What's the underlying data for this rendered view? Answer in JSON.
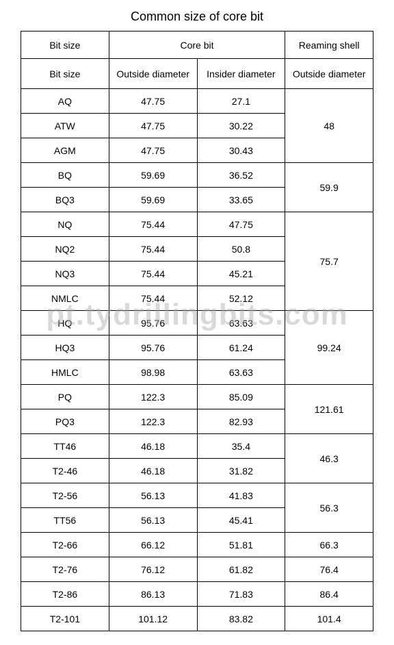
{
  "page": {
    "title": "Common size of core bit",
    "watermark": "pt.tydrillingbits.com",
    "background_color": "#ffffff",
    "border_color": "#000000",
    "text_color": "#000000",
    "watermark_color": "rgba(170,170,170,0.45)",
    "font_size_title": 18,
    "font_size_cell": 14
  },
  "headers": {
    "top_bitsize": "Bit size",
    "top_corebit": "Core bit",
    "top_reaming": "Reaming shell",
    "sub_bitsize": "Bit size",
    "sub_od": "Outside diameter",
    "sub_id": "Insider diameter",
    "sub_reaming_od": "Outside diameter"
  },
  "groups": [
    {
      "reaming_od": "48",
      "rows": [
        {
          "size": "AQ",
          "od": "47.75",
          "id": "27.1"
        },
        {
          "size": "ATW",
          "od": "47.75",
          "id": "30.22"
        },
        {
          "size": "AGM",
          "od": "47.75",
          "id": "30.43"
        }
      ]
    },
    {
      "reaming_od": "59.9",
      "rows": [
        {
          "size": "BQ",
          "od": "59.69",
          "id": "36.52"
        },
        {
          "size": "BQ3",
          "od": "59.69",
          "id": "33.65"
        }
      ]
    },
    {
      "reaming_od": "75.7",
      "rows": [
        {
          "size": "NQ",
          "od": "75.44",
          "id": "47.75"
        },
        {
          "size": "NQ2",
          "od": "75.44",
          "id": "50.8"
        },
        {
          "size": "NQ3",
          "od": "75.44",
          "id": "45.21"
        },
        {
          "size": "NMLC",
          "od": "75.44",
          "id": "52.12"
        }
      ]
    },
    {
      "reaming_od": "99.24",
      "rows": [
        {
          "size": "HQ",
          "od": "95.76",
          "id": "63.63"
        },
        {
          "size": "HQ3",
          "od": "95.76",
          "id": "61.24"
        },
        {
          "size": "HMLC",
          "od": "98.98",
          "id": "63.63"
        }
      ]
    },
    {
      "reaming_od": "121.61",
      "rows": [
        {
          "size": "PQ",
          "od": "122.3",
          "id": "85.09"
        },
        {
          "size": "PQ3",
          "od": "122.3",
          "id": "82.93"
        }
      ]
    },
    {
      "reaming_od": "46.3",
      "rows": [
        {
          "size": "TT46",
          "od": "46.18",
          "id": "35.4"
        },
        {
          "size": "T2-46",
          "od": "46.18",
          "id": "31.82"
        }
      ]
    },
    {
      "reaming_od": "56.3",
      "rows": [
        {
          "size": "T2-56",
          "od": "56.13",
          "id": "41.83"
        },
        {
          "size": "TT56",
          "od": "56.13",
          "id": "45.41"
        }
      ]
    },
    {
      "reaming_od": "66.3",
      "rows": [
        {
          "size": "T2-66",
          "od": "66.12",
          "id": "51.81"
        }
      ]
    },
    {
      "reaming_od": "76.4",
      "rows": [
        {
          "size": "T2-76",
          "od": "76.12",
          "id": "61.82"
        }
      ]
    },
    {
      "reaming_od": "86.4",
      "rows": [
        {
          "size": "T2-86",
          "od": "86.13",
          "id": "71.83"
        }
      ]
    },
    {
      "reaming_od": "101.4",
      "rows": [
        {
          "size": "T2-101",
          "od": "101.12",
          "id": "83.82"
        }
      ]
    }
  ]
}
